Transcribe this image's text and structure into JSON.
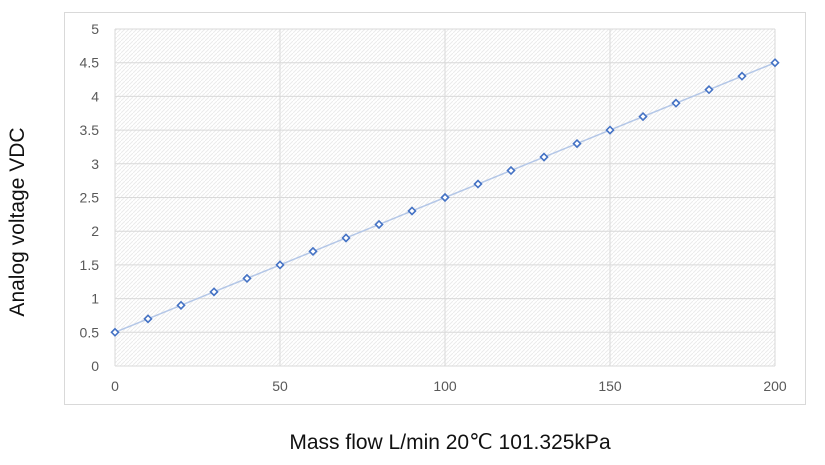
{
  "chart_data": {
    "type": "scatter",
    "title": "",
    "xlabel": "Mass flow L/min 20℃ 101.325kPa",
    "ylabel": "Analog voltage VDC",
    "xlim": [
      0,
      200
    ],
    "ylim": [
      0,
      5
    ],
    "xticks": [
      0,
      50,
      100,
      150,
      200
    ],
    "yticks": [
      0,
      0.5,
      1,
      1.5,
      2,
      2.5,
      3,
      3.5,
      4,
      4.5,
      5
    ],
    "xtick_labels": [
      "0",
      "50",
      "100",
      "150",
      "200"
    ],
    "ytick_labels": [
      "0",
      "0.5",
      "1",
      "1.5",
      "2",
      "2.5",
      "3",
      "3.5",
      "4",
      "4.5",
      "5"
    ],
    "grid": true,
    "legend": "none",
    "series": [
      {
        "name": "Analog voltage",
        "x": [
          0,
          10,
          20,
          30,
          40,
          50,
          60,
          70,
          80,
          90,
          100,
          110,
          120,
          130,
          140,
          150,
          160,
          170,
          180,
          190,
          200
        ],
        "values": [
          0.5,
          0.7,
          0.9,
          1.1,
          1.3,
          1.5,
          1.7,
          1.9,
          2.1,
          2.3,
          2.5,
          2.7,
          2.9,
          3.1,
          3.3,
          3.5,
          3.7,
          3.9,
          4.1,
          4.3,
          4.5
        ]
      }
    ],
    "colors": {
      "marker": "#4472c4",
      "line": "#b4c7e7",
      "grid": "#d9d9d9",
      "plot_bg": "#f2f2f2"
    }
  }
}
